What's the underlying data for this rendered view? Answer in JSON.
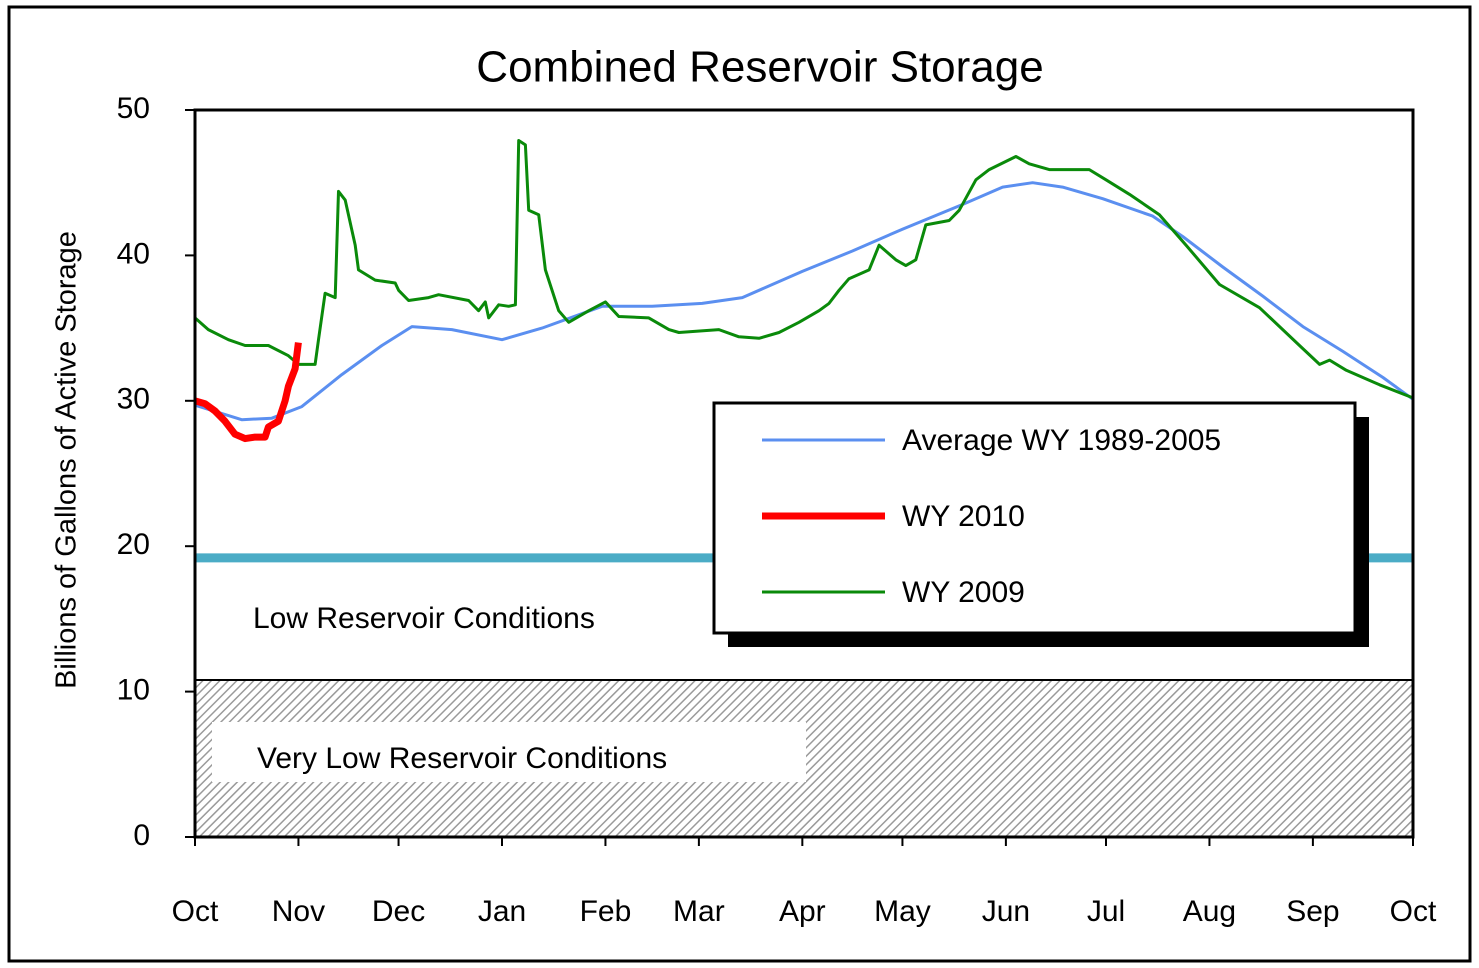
{
  "chart_data": {
    "type": "line",
    "title": "Combined Reservoir Storage",
    "y_label": "Billions of Gallons  of Active Storage",
    "xlim": [
      0,
      365
    ],
    "ylim": [
      0,
      50
    ],
    "xticks": [
      {
        "value": 0,
        "label": "Oct"
      },
      {
        "value": 31,
        "label": "Nov"
      },
      {
        "value": 61,
        "label": "Dec"
      },
      {
        "value": 92,
        "label": "Jan"
      },
      {
        "value": 123,
        "label": "Feb"
      },
      {
        "value": 151,
        "label": "Mar"
      },
      {
        "value": 182,
        "label": "Apr"
      },
      {
        "value": 212,
        "label": "May"
      },
      {
        "value": 243,
        "label": "Jun"
      },
      {
        "value": 273,
        "label": "Jul"
      },
      {
        "value": 304,
        "label": "Aug"
      },
      {
        "value": 335,
        "label": "Sep"
      },
      {
        "value": 365,
        "label": "Oct"
      }
    ],
    "yticks": [
      0,
      10,
      20,
      30,
      40,
      50
    ],
    "legend": "right",
    "series": [
      {
        "name": "Average WY 1989-2005",
        "color": "#5b8ff0",
        "width": 3,
        "x": [
          0,
          14,
          23,
          32,
          44,
          56,
          65,
          77,
          92,
          104,
          122,
          137,
          152,
          164,
          182,
          197,
          212,
          230,
          242,
          251,
          260,
          272,
          287,
          296,
          308,
          320,
          332,
          344,
          356,
          365
        ],
        "values": [
          29.7,
          28.7,
          28.8,
          29.6,
          31.8,
          33.8,
          35.1,
          34.9,
          34.2,
          35.0,
          36.5,
          36.5,
          36.7,
          37.1,
          38.9,
          40.3,
          41.8,
          43.5,
          44.7,
          45.0,
          44.7,
          43.9,
          42.7,
          41.3,
          39.2,
          37.2,
          35.1,
          33.4,
          31.6,
          30.1
        ]
      },
      {
        "name": "WY 2010",
        "color": "#ff0000",
        "width": 7,
        "x": [
          0,
          3,
          6,
          9,
          12,
          15,
          18,
          21,
          22,
          25,
          27,
          28,
          30,
          31
        ],
        "values": [
          30.0,
          29.8,
          29.3,
          28.6,
          27.7,
          27.4,
          27.5,
          27.5,
          28.2,
          28.6,
          30.0,
          31.0,
          32.2,
          34.0
        ]
      },
      {
        "name": "WY 2009",
        "color": "#0a8a0a",
        "width": 3,
        "x": [
          0,
          4,
          10,
          15,
          22,
          28,
          31,
          36,
          37,
          39,
          42,
          43,
          45,
          48,
          49,
          54,
          60,
          61,
          64,
          70,
          73,
          82,
          85,
          87,
          88,
          91,
          94,
          96,
          97,
          99,
          100,
          103,
          105,
          109,
          112,
          118,
          123,
          127,
          136,
          142,
          145,
          157,
          163,
          169,
          175,
          181,
          187,
          190,
          193,
          196,
          202,
          205,
          210,
          213,
          216,
          219,
          226,
          229,
          234,
          238,
          246,
          250,
          256,
          268,
          273,
          280,
          289,
          297,
          307,
          319,
          331,
          337,
          340,
          345,
          355,
          365
        ],
        "values": [
          35.7,
          34.9,
          34.2,
          33.8,
          33.8,
          33.1,
          32.5,
          32.5,
          34.2,
          37.4,
          37.1,
          44.4,
          43.8,
          40.7,
          39.0,
          38.3,
          38.1,
          37.6,
          36.9,
          37.1,
          37.3,
          36.9,
          36.2,
          36.8,
          35.7,
          36.6,
          36.5,
          36.6,
          47.9,
          47.6,
          43.1,
          42.8,
          39.0,
          36.2,
          35.4,
          36.2,
          36.8,
          35.8,
          35.7,
          34.9,
          34.7,
          34.9,
          34.4,
          34.3,
          34.7,
          35.4,
          36.2,
          36.7,
          37.6,
          38.4,
          39.0,
          40.7,
          39.7,
          39.3,
          39.7,
          42.1,
          42.4,
          43.1,
          45.2,
          45.9,
          46.8,
          46.3,
          45.9,
          45.9,
          45.2,
          44.2,
          42.8,
          40.7,
          38.0,
          36.4,
          33.8,
          32.5,
          32.8,
          32.1,
          31.1,
          30.2
        ]
      }
    ],
    "zones": [
      {
        "label": "Low Reservoir Conditions",
        "from": 10.8,
        "to": 19.2,
        "color": "#4bacc6"
      },
      {
        "label": "Very Low Reservoir Conditions",
        "from": 0,
        "to": 10.8,
        "color": "#9a9a9a"
      }
    ]
  }
}
